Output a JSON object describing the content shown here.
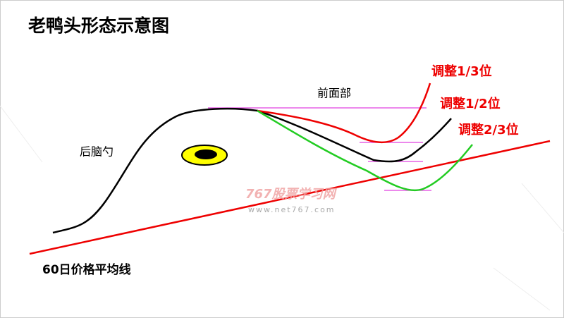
{
  "title": "老鸭头形态示意图",
  "labels": {
    "front": "前面部",
    "back": "后脑勺",
    "adjust_1_3": "调整1/3位",
    "adjust_1_2": "调整1/2位",
    "adjust_2_3": "调整2/3位",
    "ma60": "60日价格平均线"
  },
  "watermark": {
    "name": "767股票学习网",
    "url": "www.net767.com"
  }
}
